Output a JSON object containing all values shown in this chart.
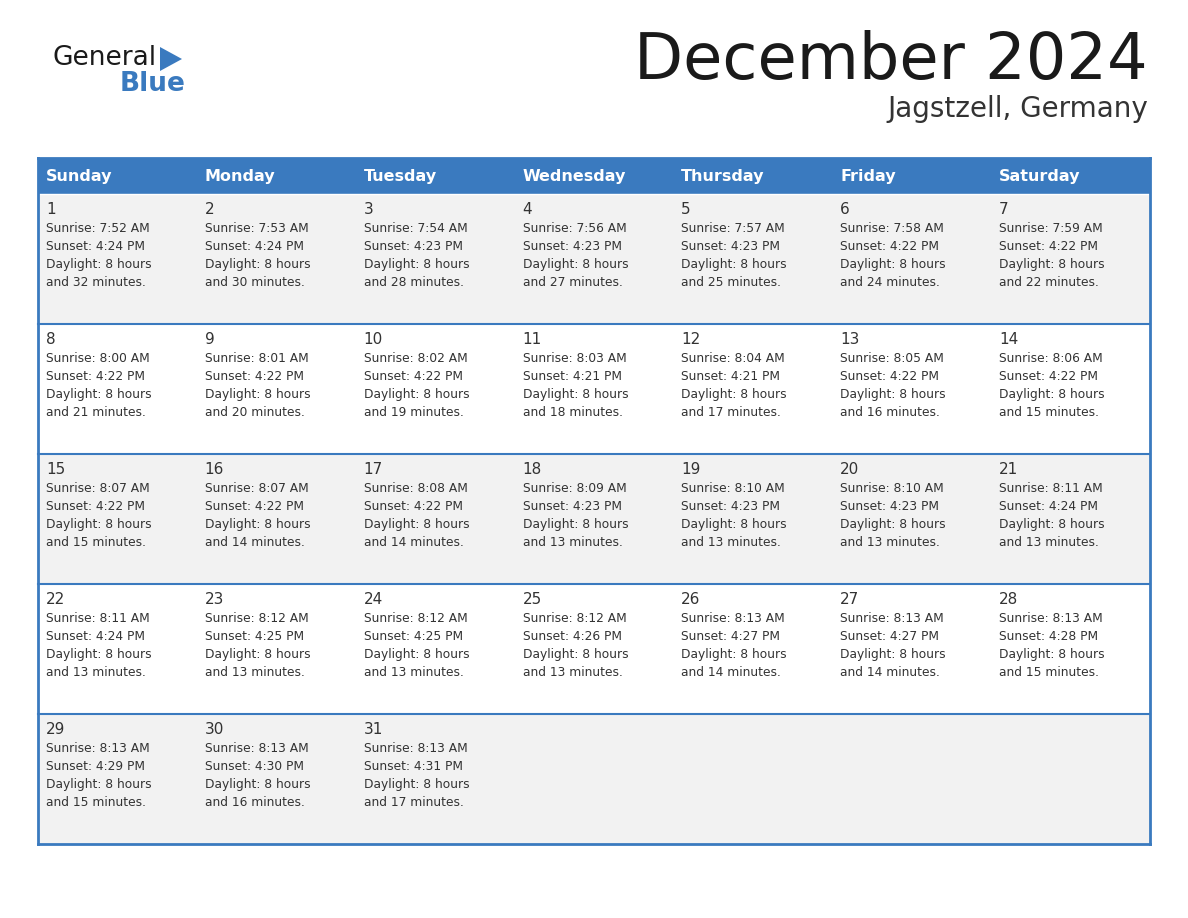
{
  "title": "December 2024",
  "subtitle": "Jagstzell, Germany",
  "days_of_week": [
    "Sunday",
    "Monday",
    "Tuesday",
    "Wednesday",
    "Thursday",
    "Friday",
    "Saturday"
  ],
  "header_bg_color": "#3a7abf",
  "header_text_color": "#ffffff",
  "cell_bg_even": "#f2f2f2",
  "cell_bg_odd": "#ffffff",
  "cell_text_color": "#333333",
  "border_color": "#3a7abf",
  "title_color": "#1a1a1a",
  "subtitle_color": "#333333",
  "logo_general_color": "#1a1a1a",
  "logo_blue_color": "#3a7abf",
  "logo_triangle_color": "#3a7abf",
  "calendar_data": [
    [
      {
        "day": 1,
        "sunrise": "7:52 AM",
        "sunset": "4:24 PM",
        "daylight": "8 hours and 32 minutes."
      },
      {
        "day": 2,
        "sunrise": "7:53 AM",
        "sunset": "4:24 PM",
        "daylight": "8 hours and 30 minutes."
      },
      {
        "day": 3,
        "sunrise": "7:54 AM",
        "sunset": "4:23 PM",
        "daylight": "8 hours and 28 minutes."
      },
      {
        "day": 4,
        "sunrise": "7:56 AM",
        "sunset": "4:23 PM",
        "daylight": "8 hours and 27 minutes."
      },
      {
        "day": 5,
        "sunrise": "7:57 AM",
        "sunset": "4:23 PM",
        "daylight": "8 hours and 25 minutes."
      },
      {
        "day": 6,
        "sunrise": "7:58 AM",
        "sunset": "4:22 PM",
        "daylight": "8 hours and 24 minutes."
      },
      {
        "day": 7,
        "sunrise": "7:59 AM",
        "sunset": "4:22 PM",
        "daylight": "8 hours and 22 minutes."
      }
    ],
    [
      {
        "day": 8,
        "sunrise": "8:00 AM",
        "sunset": "4:22 PM",
        "daylight": "8 hours and 21 minutes."
      },
      {
        "day": 9,
        "sunrise": "8:01 AM",
        "sunset": "4:22 PM",
        "daylight": "8 hours and 20 minutes."
      },
      {
        "day": 10,
        "sunrise": "8:02 AM",
        "sunset": "4:22 PM",
        "daylight": "8 hours and 19 minutes."
      },
      {
        "day": 11,
        "sunrise": "8:03 AM",
        "sunset": "4:21 PM",
        "daylight": "8 hours and 18 minutes."
      },
      {
        "day": 12,
        "sunrise": "8:04 AM",
        "sunset": "4:21 PM",
        "daylight": "8 hours and 17 minutes."
      },
      {
        "day": 13,
        "sunrise": "8:05 AM",
        "sunset": "4:22 PM",
        "daylight": "8 hours and 16 minutes."
      },
      {
        "day": 14,
        "sunrise": "8:06 AM",
        "sunset": "4:22 PM",
        "daylight": "8 hours and 15 minutes."
      }
    ],
    [
      {
        "day": 15,
        "sunrise": "8:07 AM",
        "sunset": "4:22 PM",
        "daylight": "8 hours and 15 minutes."
      },
      {
        "day": 16,
        "sunrise": "8:07 AM",
        "sunset": "4:22 PM",
        "daylight": "8 hours and 14 minutes."
      },
      {
        "day": 17,
        "sunrise": "8:08 AM",
        "sunset": "4:22 PM",
        "daylight": "8 hours and 14 minutes."
      },
      {
        "day": 18,
        "sunrise": "8:09 AM",
        "sunset": "4:23 PM",
        "daylight": "8 hours and 13 minutes."
      },
      {
        "day": 19,
        "sunrise": "8:10 AM",
        "sunset": "4:23 PM",
        "daylight": "8 hours and 13 minutes."
      },
      {
        "day": 20,
        "sunrise": "8:10 AM",
        "sunset": "4:23 PM",
        "daylight": "8 hours and 13 minutes."
      },
      {
        "day": 21,
        "sunrise": "8:11 AM",
        "sunset": "4:24 PM",
        "daylight": "8 hours and 13 minutes."
      }
    ],
    [
      {
        "day": 22,
        "sunrise": "8:11 AM",
        "sunset": "4:24 PM",
        "daylight": "8 hours and 13 minutes."
      },
      {
        "day": 23,
        "sunrise": "8:12 AM",
        "sunset": "4:25 PM",
        "daylight": "8 hours and 13 minutes."
      },
      {
        "day": 24,
        "sunrise": "8:12 AM",
        "sunset": "4:25 PM",
        "daylight": "8 hours and 13 minutes."
      },
      {
        "day": 25,
        "sunrise": "8:12 AM",
        "sunset": "4:26 PM",
        "daylight": "8 hours and 13 minutes."
      },
      {
        "day": 26,
        "sunrise": "8:13 AM",
        "sunset": "4:27 PM",
        "daylight": "8 hours and 14 minutes."
      },
      {
        "day": 27,
        "sunrise": "8:13 AM",
        "sunset": "4:27 PM",
        "daylight": "8 hours and 14 minutes."
      },
      {
        "day": 28,
        "sunrise": "8:13 AM",
        "sunset": "4:28 PM",
        "daylight": "8 hours and 15 minutes."
      }
    ],
    [
      {
        "day": 29,
        "sunrise": "8:13 AM",
        "sunset": "4:29 PM",
        "daylight": "8 hours and 15 minutes."
      },
      {
        "day": 30,
        "sunrise": "8:13 AM",
        "sunset": "4:30 PM",
        "daylight": "8 hours and 16 minutes."
      },
      {
        "day": 31,
        "sunrise": "8:13 AM",
        "sunset": "4:31 PM",
        "daylight": "8 hours and 17 minutes."
      },
      null,
      null,
      null,
      null
    ]
  ],
  "figsize": [
    11.88,
    9.18
  ],
  "dpi": 100
}
